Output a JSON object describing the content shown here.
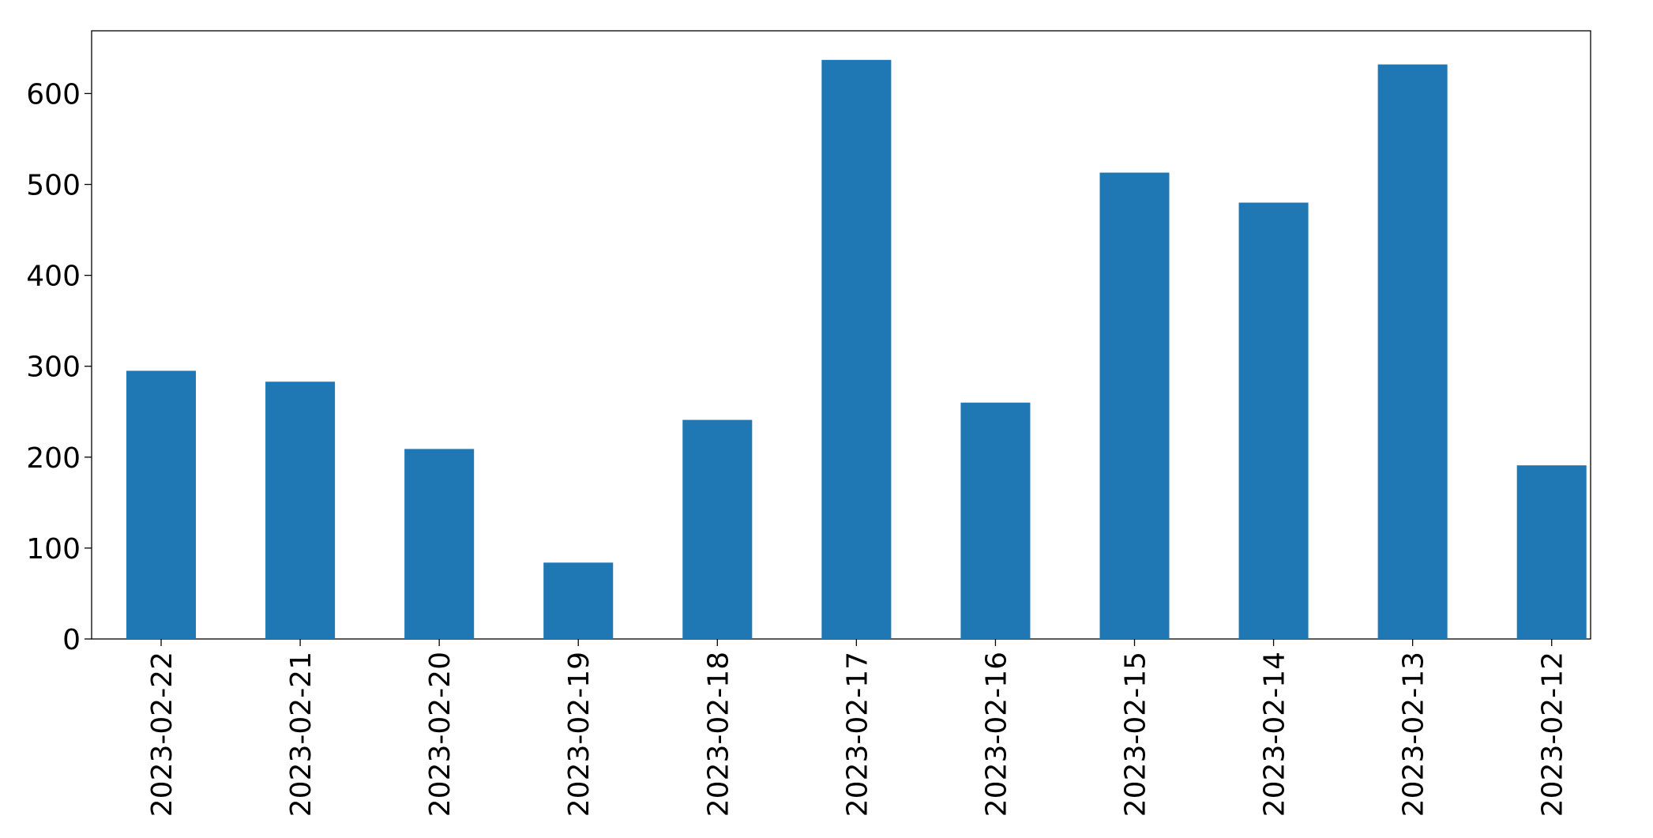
{
  "chart_data": {
    "type": "bar",
    "categories": [
      "2023-02-22",
      "2023-02-21",
      "2023-02-20",
      "2023-02-19",
      "2023-02-18",
      "2023-02-17",
      "2023-02-16",
      "2023-02-15",
      "2023-02-14",
      "2023-02-13",
      "2023-02-12"
    ],
    "values": [
      295,
      283,
      209,
      84,
      241,
      637,
      260,
      513,
      480,
      632,
      191
    ],
    "color": "#1f77b4",
    "ylim": [
      0,
      669
    ],
    "yticks": [
      0,
      100,
      200,
      300,
      400,
      500,
      600
    ],
    "grid": false
  }
}
